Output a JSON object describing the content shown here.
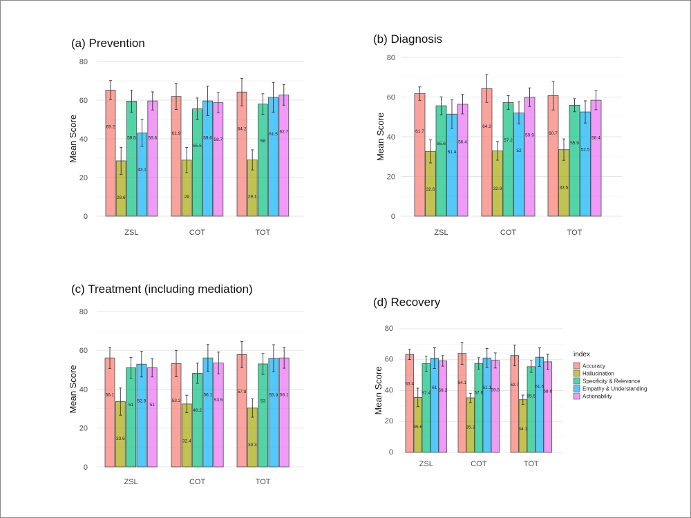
{
  "legend": {
    "title": "index",
    "items": [
      "Accuracy",
      "Hallucination",
      "Specificity & Relevance",
      "Empathy & Understanding",
      "Actionability"
    ],
    "colors": [
      "#F8766D",
      "#A3A500",
      "#00BF7D",
      "#00B0F6",
      "#E76BF3"
    ]
  },
  "chart_data": [
    {
      "type": "bar",
      "title": "(a) Prevention",
      "xlabel": "",
      "ylabel": "Mean Score",
      "ylim": [
        0,
        80
      ],
      "yticks": [
        0,
        20,
        40,
        60,
        80
      ],
      "grid": true,
      "categories": [
        "ZSL",
        "COT",
        "TOT"
      ],
      "series": [
        {
          "name": "Accuracy",
          "values": [
            65.2,
            61.9,
            64.2
          ],
          "errors": [
            4.9,
            6.7,
            7.1
          ]
        },
        {
          "name": "Hallucination",
          "values": [
            28.6,
            29,
            29.1
          ],
          "errors": [
            7,
            6.5,
            5.2
          ]
        },
        {
          "name": "Specificity & Relevance",
          "values": [
            59.5,
            55.5,
            58
          ],
          "errors": [
            5.7,
            5.6,
            5.3
          ]
        },
        {
          "name": "Empathy & Understanding",
          "values": [
            43.1,
            59.6,
            61.5
          ],
          "errors": [
            7,
            7.6,
            7.7
          ]
        },
        {
          "name": "Actionability",
          "values": [
            59.6,
            58.7,
            62.7
          ],
          "errors": [
            4.7,
            5.2,
            5.3
          ]
        }
      ]
    },
    {
      "type": "bar",
      "title": "(b) Diagnosis",
      "xlabel": "",
      "ylabel": "Mean Score",
      "ylim": [
        0,
        80
      ],
      "yticks": [
        0,
        20,
        40,
        60,
        80
      ],
      "grid": true,
      "categories": [
        "ZSL",
        "COT",
        "TOT"
      ],
      "series": [
        {
          "name": "Accuracy",
          "values": [
            61.7,
            64.3,
            60.7
          ],
          "errors": [
            3.4,
            7,
            7.2
          ]
        },
        {
          "name": "Hallucination",
          "values": [
            32.6,
            32.9,
            33.5
          ],
          "errors": [
            5.8,
            4.7,
            5.4
          ]
        },
        {
          "name": "Specificity & Relevance",
          "values": [
            55.6,
            57.2,
            55.9
          ],
          "errors": [
            4.5,
            3.5,
            3.3
          ]
        },
        {
          "name": "Empathy & Understanding",
          "values": [
            51.4,
            52,
            52.5
          ],
          "errors": [
            7.2,
            5.6,
            5.6
          ]
        },
        {
          "name": "Actionability",
          "values": [
            56.4,
            59.9,
            58.4
          ],
          "errors": [
            4.9,
            4.7,
            4.8
          ]
        }
      ]
    },
    {
      "type": "bar",
      "title": "(c) Treatment (including mediation)",
      "xlabel": "",
      "ylabel": "Mean Score",
      "ylim": [
        0,
        80
      ],
      "yticks": [
        0,
        20,
        40,
        60,
        80
      ],
      "grid": true,
      "categories": [
        "ZSL",
        "COT",
        "TOT"
      ],
      "series": [
        {
          "name": "Accuracy",
          "values": [
            56.1,
            53.2,
            57.8
          ],
          "errors": [
            5.4,
            6.8,
            6.7
          ]
        },
        {
          "name": "Hallucination",
          "values": [
            33.6,
            32.4,
            30.3
          ],
          "errors": [
            7,
            4.5,
            4.7
          ]
        },
        {
          "name": "Specificity & Relevance",
          "values": [
            51,
            48.2,
            53
          ],
          "errors": [
            5.4,
            5.2,
            5.4
          ]
        },
        {
          "name": "Empathy & Understanding",
          "values": [
            52.9,
            56.1,
            55.9
          ],
          "errors": [
            6.6,
            6.9,
            7
          ]
        },
        {
          "name": "Actionability",
          "values": [
            51,
            53.5,
            56.1
          ],
          "errors": [
            4.7,
            5.6,
            5.3
          ]
        }
      ]
    },
    {
      "type": "bar",
      "title": "(d) Recovery",
      "xlabel": "",
      "ylabel": "Mean Score",
      "ylim": [
        0,
        80
      ],
      "yticks": [
        0,
        20,
        40,
        60,
        80
      ],
      "grid": true,
      "legend_position": "right",
      "categories": [
        "ZSL",
        "COT",
        "TOT"
      ],
      "series": [
        {
          "name": "Accuracy",
          "values": [
            63.4,
            64.1,
            62.7
          ],
          "errors": [
            3.3,
            7.1,
            6.7
          ]
        },
        {
          "name": "Hallucination",
          "values": [
            35.6,
            35.3,
            34.1
          ],
          "errors": [
            6,
            3,
            3
          ]
        },
        {
          "name": "Specificity & Relevance",
          "values": [
            57.4,
            57.6,
            55.5
          ],
          "errors": [
            4.9,
            3.7,
            3.7
          ]
        },
        {
          "name": "Empathy & Understanding",
          "values": [
            61,
            61.1,
            61.6
          ],
          "errors": [
            6.7,
            6.2,
            6
          ]
        },
        {
          "name": "Actionability",
          "values": [
            59.2,
            59.5,
            58.6
          ],
          "errors": [
            3.4,
            4.9,
            4.9
          ]
        }
      ]
    }
  ]
}
